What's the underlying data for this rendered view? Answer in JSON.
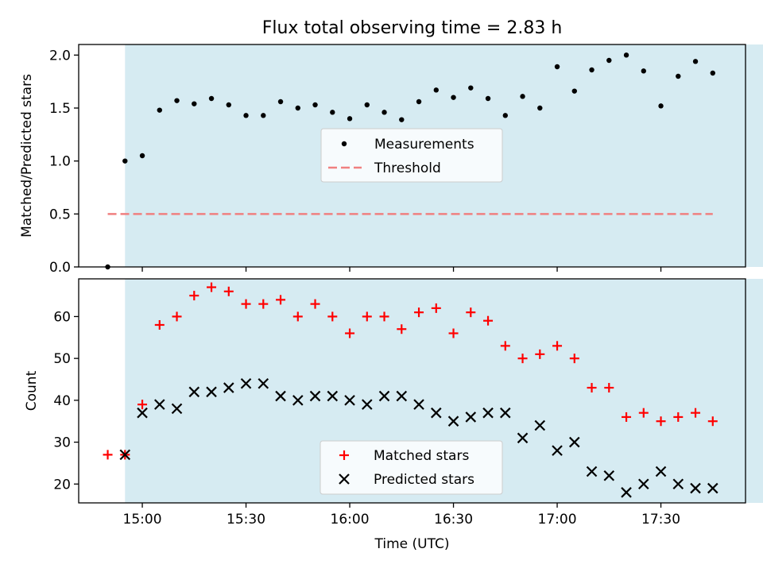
{
  "chart_data": [
    {
      "type": "scatter",
      "title": "Flux total observing time = 2.83 h",
      "xlabel": "",
      "ylabel": "Matched/Predicted stars",
      "ylim": [
        0,
        2.1
      ],
      "yticks": [
        "0.0",
        "0.5",
        "1.0",
        "1.5",
        "2.0"
      ],
      "shaded_interval": [
        "14:55",
        "18:45"
      ],
      "legend_position": "center",
      "series": [
        {
          "name": "Measurements",
          "marker": "dot",
          "color": "#000000",
          "x": [
            "14:50",
            "14:55",
            "15:00",
            "15:05",
            "15:10",
            "15:15",
            "15:20",
            "15:25",
            "15:30",
            "15:35",
            "15:40",
            "15:45",
            "15:50",
            "15:55",
            "16:00",
            "16:05",
            "16:10",
            "16:15",
            "16:20",
            "16:25",
            "16:30",
            "16:35",
            "16:40",
            "16:45",
            "16:50",
            "16:55",
            "17:00",
            "17:05",
            "17:10",
            "17:15",
            "17:20",
            "17:25",
            "17:30",
            "17:35",
            "17:40",
            "17:45"
          ],
          "y": [
            0.0,
            1.0,
            1.05,
            1.48,
            1.57,
            1.54,
            1.59,
            1.53,
            1.43,
            1.43,
            1.56,
            1.5,
            1.53,
            1.46,
            1.4,
            1.53,
            1.46,
            1.39,
            1.56,
            1.67,
            1.6,
            1.69,
            1.59,
            1.43,
            1.61,
            1.5,
            1.89,
            1.66,
            1.86,
            1.95,
            2.0,
            1.85,
            1.52,
            1.8,
            1.94,
            1.83
          ]
        },
        {
          "name": "Threshold",
          "line": "dashed",
          "color": "#f08080",
          "x": [
            "14:50",
            "17:45"
          ],
          "y": [
            0.5,
            0.5
          ]
        }
      ]
    },
    {
      "type": "scatter",
      "title": "",
      "xlabel": "Time (UTC)",
      "ylabel": "Count",
      "ylim": [
        15.5,
        69
      ],
      "yticks": [
        "20",
        "30",
        "40",
        "50",
        "60"
      ],
      "xticks": [
        "15:00",
        "15:30",
        "16:00",
        "16:30",
        "17:00",
        "17:30"
      ],
      "legend_position": "lower center",
      "series": [
        {
          "name": "Matched stars",
          "marker": "plus",
          "color": "#ff0000",
          "x": [
            "14:50",
            "14:55",
            "15:00",
            "15:05",
            "15:10",
            "15:15",
            "15:20",
            "15:25",
            "15:30",
            "15:35",
            "15:40",
            "15:45",
            "15:50",
            "15:55",
            "16:00",
            "16:05",
            "16:10",
            "16:15",
            "16:20",
            "16:25",
            "16:30",
            "16:35",
            "16:40",
            "16:45",
            "16:50",
            "16:55",
            "17:00",
            "17:05",
            "17:10",
            "17:15",
            "17:20",
            "17:25",
            "17:30",
            "17:35",
            "17:40",
            "17:45"
          ],
          "y": [
            27,
            27,
            39,
            58,
            60,
            65,
            67,
            66,
            63,
            63,
            64,
            60,
            63,
            60,
            56,
            60,
            60,
            57,
            61,
            62,
            56,
            61,
            59,
            53,
            50,
            51,
            53,
            50,
            43,
            43,
            36,
            37,
            35,
            36,
            37,
            35
          ]
        },
        {
          "name": "Predicted stars",
          "marker": "x",
          "color": "#000000",
          "x": [
            "14:55",
            "15:00",
            "15:05",
            "15:10",
            "15:15",
            "15:20",
            "15:25",
            "15:30",
            "15:35",
            "15:40",
            "15:45",
            "15:50",
            "15:55",
            "16:00",
            "16:05",
            "16:10",
            "16:15",
            "16:20",
            "16:25",
            "16:30",
            "16:35",
            "16:40",
            "16:45",
            "16:50",
            "16:55",
            "17:00",
            "17:05",
            "17:10",
            "17:15",
            "17:20",
            "17:25",
            "17:30",
            "17:35",
            "17:40",
            "17:45"
          ],
          "y": [
            27,
            37,
            39,
            38,
            42,
            42,
            43,
            44,
            44,
            41,
            40,
            41,
            41,
            40,
            39,
            41,
            41,
            39,
            37,
            35,
            36,
            37,
            37,
            31,
            34,
            28,
            30,
            23,
            22,
            18,
            20,
            23,
            20,
            19,
            19
          ]
        }
      ]
    }
  ]
}
